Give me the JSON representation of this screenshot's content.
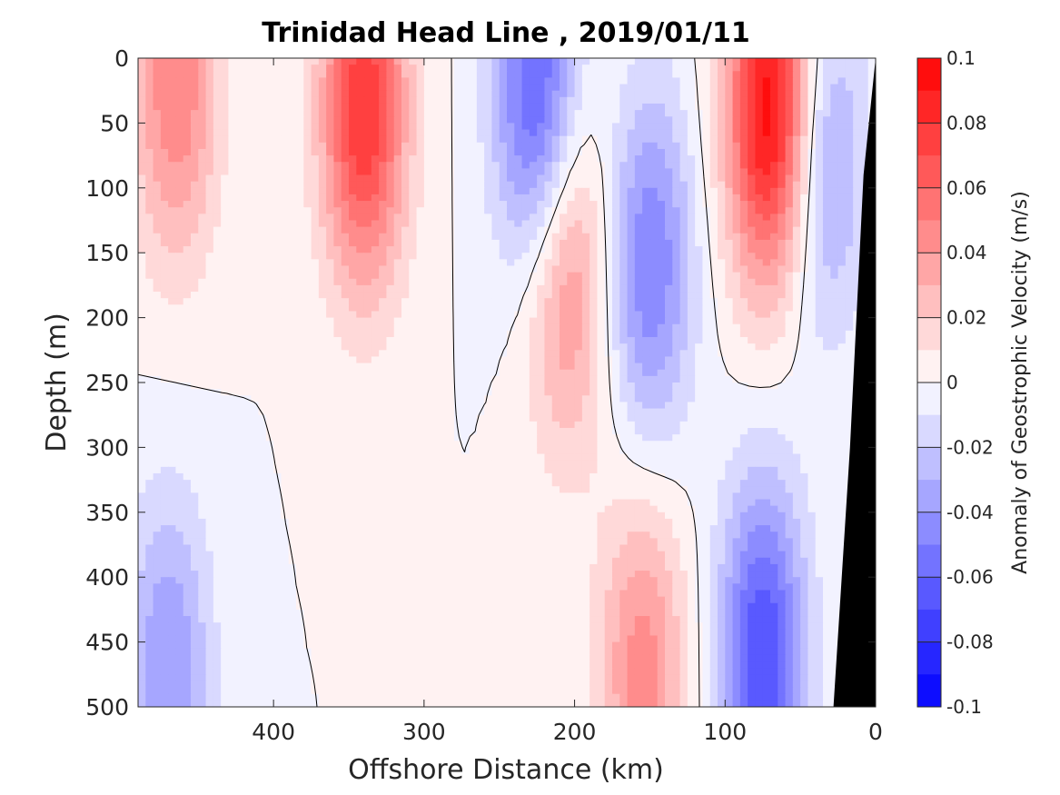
{
  "chart_data": {
    "type": "heatmap",
    "title": "Trinidad Head Line , 2019/01/11",
    "xlabel": "Offshore Distance (km)",
    "ylabel": "Depth (m)",
    "xlim": [
      490,
      0
    ],
    "x_reversed": true,
    "ylim": [
      0,
      500
    ],
    "y_reversed": true,
    "x_ticks": [
      400,
      300,
      200,
      100,
      0
    ],
    "y_ticks": [
      0,
      50,
      100,
      150,
      200,
      250,
      300,
      350,
      400,
      450,
      500
    ],
    "colorbar": {
      "label": "Anomaly of Geostrophic Velocity (m/s)",
      "range": [
        -0.1,
        0.1
      ],
      "levels": 20,
      "ticks": [
        0.1,
        0.08,
        0.06,
        0.04,
        0.02,
        0,
        -0.02,
        -0.04,
        -0.06,
        -0.08,
        -0.1
      ],
      "tick_labels": [
        "0.1",
        "0.08",
        "0.06",
        "0.04",
        "0.02",
        "0",
        "-0.02",
        "-0.04",
        "-0.06",
        "-0.08",
        "-0.1"
      ]
    },
    "contour_level": 0,
    "bottom_mask_color": "#000000",
    "features": [
      {
        "x_km": 465,
        "depth_m": 20,
        "anomaly": 0.05
      },
      {
        "x_km": 340,
        "depth_m": 40,
        "anomaly": 0.08
      },
      {
        "x_km": 225,
        "depth_m": 30,
        "anomaly": -0.065
      },
      {
        "x_km": 70,
        "depth_m": 40,
        "anomaly": 0.1
      },
      {
        "x_km": 205,
        "depth_m": 170,
        "anomaly": 0.045
      },
      {
        "x_km": 150,
        "depth_m": 160,
        "anomaly": -0.05
      },
      {
        "x_km": 155,
        "depth_m": 470,
        "anomaly": 0.045
      },
      {
        "x_km": 75,
        "depth_m": 460,
        "anomaly": -0.07
      },
      {
        "x_km": 35,
        "depth_m": 80,
        "anomaly": -0.04
      },
      {
        "x_km": 470,
        "depth_m": 470,
        "anomaly": -0.04
      }
    ]
  }
}
